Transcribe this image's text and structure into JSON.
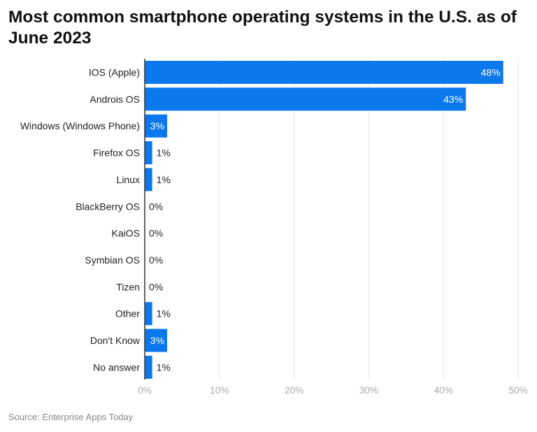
{
  "chart_data": {
    "type": "bar",
    "orientation": "horizontal",
    "title": "Most common smartphone operating systems in the U.S. as of June 2023",
    "categories": [
      "IOS (Apple)",
      "Androis OS",
      "Windows (Windows Phone)",
      "Firefox OS",
      "Linux",
      "BlackBerry OS",
      "KaiOS",
      "Symbian OS",
      "Tizen",
      "Other",
      "Don't Know",
      "No answer"
    ],
    "values": [
      48,
      43,
      3,
      1,
      1,
      0,
      0,
      0,
      0,
      1,
      3,
      1
    ],
    "data_labels": [
      "48%",
      "43%",
      "3%",
      "1%",
      "1%",
      "0%",
      "0%",
      "0%",
      "0%",
      "1%",
      "3%",
      "1%"
    ],
    "xlim": [
      0,
      50
    ],
    "xticks": [
      0,
      10,
      20,
      30,
      40,
      50
    ],
    "xtick_labels": [
      "0%",
      "10%",
      "20%",
      "30%",
      "40%",
      "50%"
    ],
    "xlabel": "",
    "ylabel": "",
    "grid": "vertical",
    "bar_color": "#0b78ee",
    "source": "Source: Enterprise Apps Today"
  }
}
